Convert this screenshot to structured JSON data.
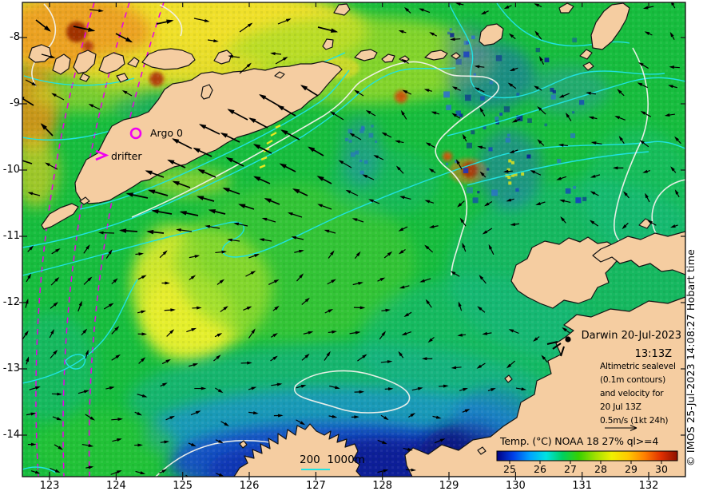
{
  "map_labels": {
    "argo": "Argo 0",
    "drifter": "drifter",
    "station_name_date": "Darwin 20-Jul-2023",
    "station_time": "13:13Z",
    "bathy_scale": "200  1000m"
  },
  "info_box": {
    "line1": "Altimetric sealevel",
    "line2": "(0.1m contours)",
    "line3": "and velocity for",
    "line4": "20 Jul 13Z",
    "line5": "0.5m/s (1kt 24h)"
  },
  "colorbar": {
    "title": "Temp. (°C) NOAA 18 27% ql>=4",
    "tick_labels": [
      "25",
      "26",
      "27",
      "28",
      "29",
      "30"
    ],
    "gradient": [
      "#000082",
      "#0040e8",
      "#00a2ff",
      "#00e2e2",
      "#00d060",
      "#38d000",
      "#a0e000",
      "#f0f000",
      "#ffc800",
      "#ff8000",
      "#e03000",
      "#8c1000"
    ]
  },
  "axes": {
    "x_tick_labels": [
      "123",
      "124",
      "125",
      "126",
      "127",
      "128",
      "129",
      "130",
      "131",
      "132"
    ],
    "y_tick_labels": [
      "-8",
      "-9",
      "-10",
      "-11",
      "-12",
      "-13",
      "-14"
    ]
  },
  "credit": "© IMOS 25-Jul-2023 14:08:27 Hobart time",
  "colors": {
    "land": "#f5cda1",
    "ocean_green": "#17bd3e",
    "marker_magenta": "#ff00ff",
    "bathy_cyan": "#20e2e2",
    "sealevel_white": "#f2f2ec",
    "vector_black": "#000000"
  }
}
